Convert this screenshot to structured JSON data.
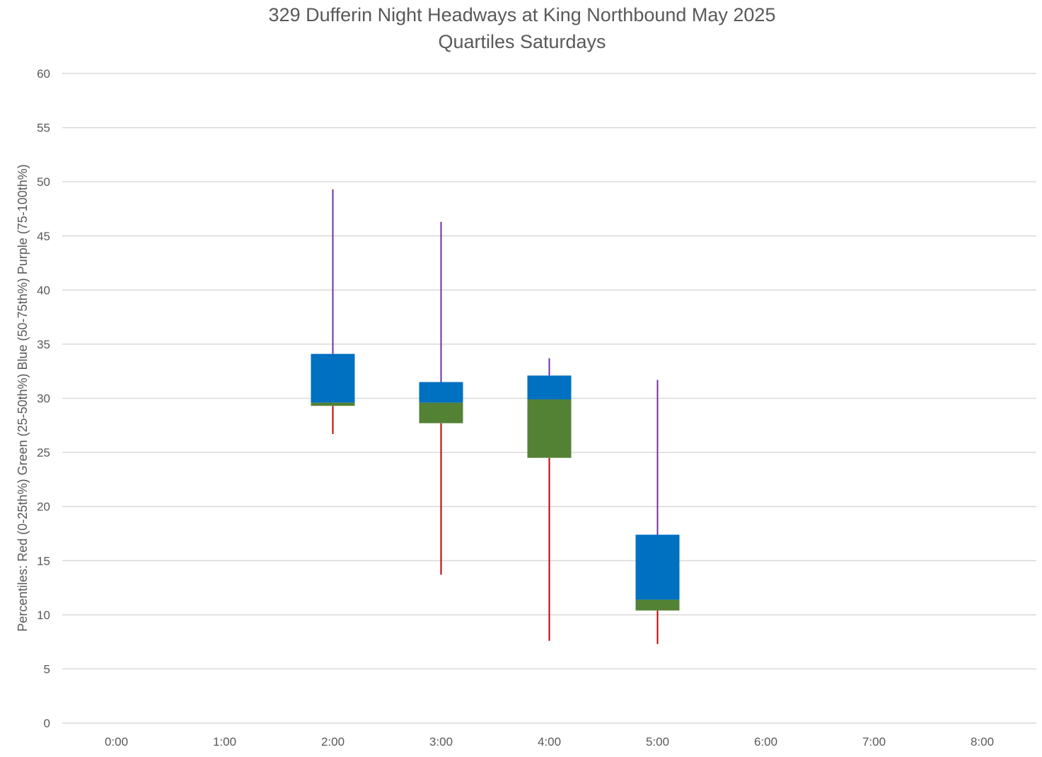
{
  "chart_data": {
    "type": "box",
    "title": "329 Dufferin Night Headways at King Northbound May 2025",
    "subtitle": "Quartiles Saturdays",
    "xlabel": "",
    "ylabel": "Percentiles:  Red (0-25th%)  Green (25-50th%)  Blue (50-75th%)  Purple (75-100th%)",
    "ylim": [
      0,
      60
    ],
    "yticks": [
      0,
      5,
      10,
      15,
      20,
      25,
      30,
      35,
      40,
      45,
      50,
      55,
      60
    ],
    "categories": [
      "0:00",
      "1:00",
      "2:00",
      "3:00",
      "4:00",
      "5:00",
      "6:00",
      "7:00",
      "8:00"
    ],
    "grid": true,
    "colors": {
      "q1_whisker": "#C00000",
      "q2_box": "#548235",
      "q3_box": "#0070C0",
      "q4_whisker": "#7030A0",
      "gridline": "#D9D9D9",
      "text": "#595959"
    },
    "boxes": [
      {
        "category": "2:00",
        "min": 26.7,
        "q1": 29.3,
        "median": 29.6,
        "q3": 34.1,
        "max": 49.3
      },
      {
        "category": "3:00",
        "min": 13.7,
        "q1": 27.7,
        "median": 29.6,
        "q3": 31.5,
        "max": 46.3
      },
      {
        "category": "4:00",
        "min": 7.6,
        "q1": 24.5,
        "median": 29.9,
        "q3": 32.1,
        "max": 33.7
      },
      {
        "category": "5:00",
        "min": 7.3,
        "q1": 10.4,
        "median": 11.4,
        "q3": 17.4,
        "max": 31.7
      }
    ]
  }
}
